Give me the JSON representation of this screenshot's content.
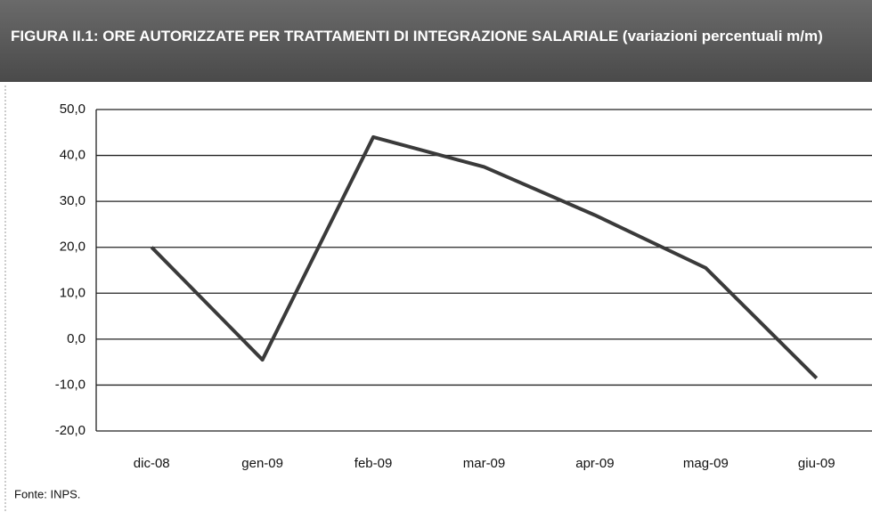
{
  "chart_data": {
    "type": "line",
    "title": "FIGURA II.1: ORE AUTORIZZATE PER TRATTAMENTI DI INTEGRAZIONE SALARIALE (variazioni percentuali m/m)",
    "categories": [
      "dic-08",
      "gen-09",
      "feb-09",
      "mar-09",
      "apr-09",
      "mag-09",
      "giu-09"
    ],
    "series": [
      {
        "name": "variazioni percentuali m/m",
        "color": "#3a3a3a",
        "values": [
          20,
          -4.5,
          44,
          37.5,
          27,
          15.5,
          -8.5
        ]
      }
    ],
    "ylim": [
      -20,
      50
    ],
    "yticks": [
      {
        "value": -20,
        "label": "-20,0"
      },
      {
        "value": -10,
        "label": "-10,0"
      },
      {
        "value": 0,
        "label": "0,0"
      },
      {
        "value": 10,
        "label": "10,0"
      },
      {
        "value": 20,
        "label": "20,0"
      },
      {
        "value": 30,
        "label": "30,0"
      },
      {
        "value": 40,
        "label": "40,0"
      },
      {
        "value": 50,
        "label": "50,0"
      }
    ],
    "grid": true,
    "source": "Fonte: INPS."
  }
}
